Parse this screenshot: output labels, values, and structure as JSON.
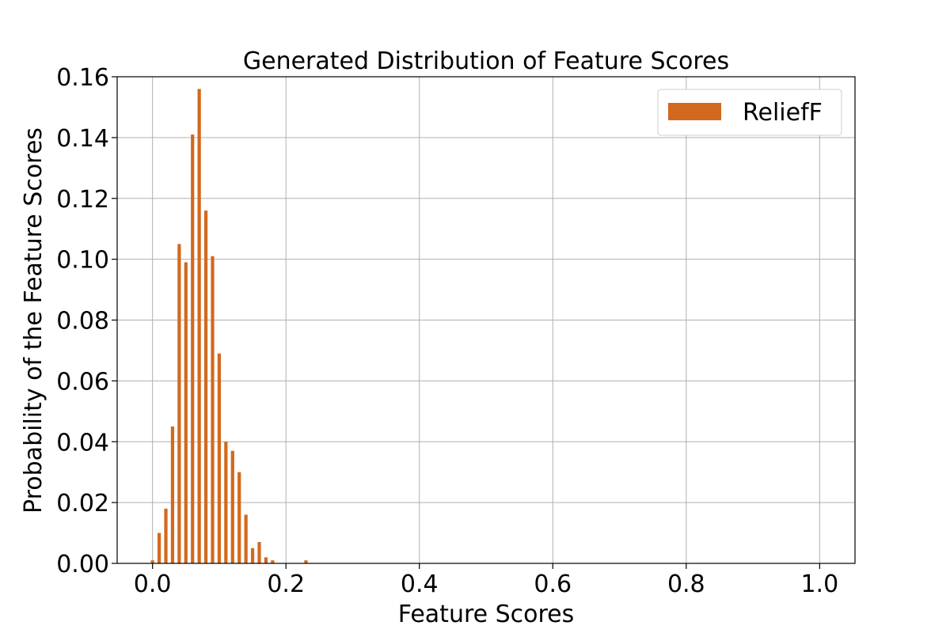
{
  "chart_data": {
    "type": "bar",
    "title": "Generated Distribution of Feature Scores",
    "xlabel": "Feature Scores",
    "ylabel": "Probability of the Feature Scores",
    "xlim": [
      -0.053,
      1.053
    ],
    "ylim": [
      0,
      0.16
    ],
    "xticks": [
      0.0,
      0.2,
      0.4,
      0.6,
      0.8,
      1.0
    ],
    "xtick_labels": [
      "0.0",
      "0.2",
      "0.4",
      "0.6",
      "0.8",
      "1.0"
    ],
    "yticks": [
      0.0,
      0.02,
      0.04,
      0.06,
      0.08,
      0.1,
      0.12,
      0.14,
      0.16
    ],
    "ytick_labels": [
      "0.00",
      "0.02",
      "0.04",
      "0.06",
      "0.08",
      "0.10",
      "0.12",
      "0.14",
      "0.16"
    ],
    "grid": true,
    "legend_position": "top-right",
    "bar_width": 0.005,
    "series": [
      {
        "name": "ReliefF",
        "color": "#d2691e",
        "x": [
          0.0,
          0.01,
          0.02,
          0.03,
          0.04,
          0.05,
          0.06,
          0.07,
          0.08,
          0.09,
          0.1,
          0.11,
          0.12,
          0.13,
          0.14,
          0.15,
          0.16,
          0.17,
          0.18,
          0.23
        ],
        "values": [
          0.001,
          0.01,
          0.018,
          0.045,
          0.105,
          0.099,
          0.141,
          0.156,
          0.116,
          0.101,
          0.069,
          0.04,
          0.037,
          0.03,
          0.016,
          0.005,
          0.007,
          0.002,
          0.001,
          0.001
        ]
      }
    ]
  }
}
